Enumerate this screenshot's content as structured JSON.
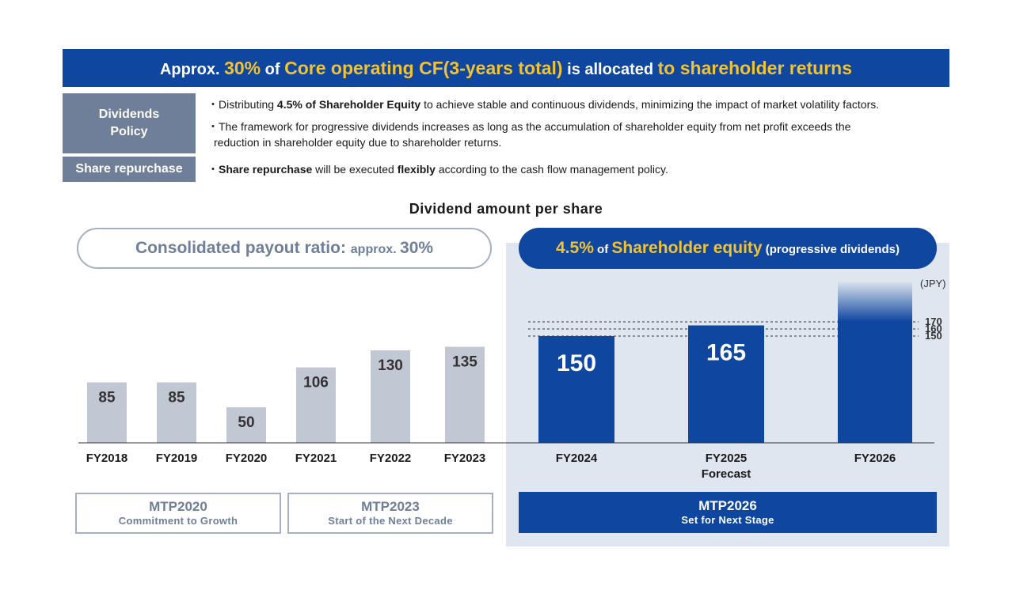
{
  "banner": {
    "part1": "Approx. ",
    "part2": "30%",
    "part3": " of ",
    "part4": "Core operating CF(3-years total)",
    "part5": " is allocated ",
    "part6": "to shareholder returns"
  },
  "policy": {
    "dividends_label_line1": "Dividends",
    "dividends_label_line2": "Policy",
    "line1_pre": "・Distributing ",
    "line1_bold": "4.5% of Shareholder Equity",
    "line1_post": " to achieve stable and continuous dividends, minimizing the impact of market volatility factors.",
    "line2": "・The framework for progressive dividends increases as long as the accumulation of shareholder equity from net profit exceeds the",
    "line3": "reduction in shareholder equity due to shareholder returns.",
    "repurchase_label": "Share repurchase",
    "line4_pre": "・",
    "line4_bold1": "Share repurchase",
    "line4_mid": " will be executed ",
    "line4_bold2": "flexibly",
    "line4_post": " according to the cash flow management policy."
  },
  "pill_left": {
    "main": "Consolidated payout ratio: ",
    "small": "approx. ",
    "value": "30%"
  },
  "pill_right": {
    "value": "4.5%",
    "of": " of ",
    "main": "Shareholder equity",
    "sub": " (progressive dividends)"
  },
  "mtp": [
    {
      "title": "MTP2020",
      "subtitle": "Commitment to Growth"
    },
    {
      "title": "MTP2023",
      "subtitle": "Start of the Next Decade"
    },
    {
      "title": "MTP2026",
      "subtitle": "Set for Next Stage"
    }
  ],
  "chart_data": {
    "type": "bar",
    "title": "Dividend amount per share",
    "unit_label": "(JPY)",
    "categories": [
      "FY2018",
      "FY2019",
      "FY2020",
      "FY2021",
      "FY2022",
      "FY2023",
      "FY2024",
      "FY2025",
      "FY2026"
    ],
    "category_sublabels": [
      "",
      "",
      "",
      "",
      "",
      "",
      "",
      "Forecast",
      ""
    ],
    "values": [
      85,
      85,
      50,
      106,
      130,
      135,
      150,
      165,
      170
    ],
    "value_labels": [
      "85",
      "85",
      "50",
      "106",
      "130",
      "135",
      "150",
      "165",
      ""
    ],
    "reference_lines": [
      170,
      160,
      150
    ],
    "colors": {
      "past": "#c2c8d3",
      "mtp2026": "#0e46a0",
      "accent": "#f1c232"
    }
  }
}
